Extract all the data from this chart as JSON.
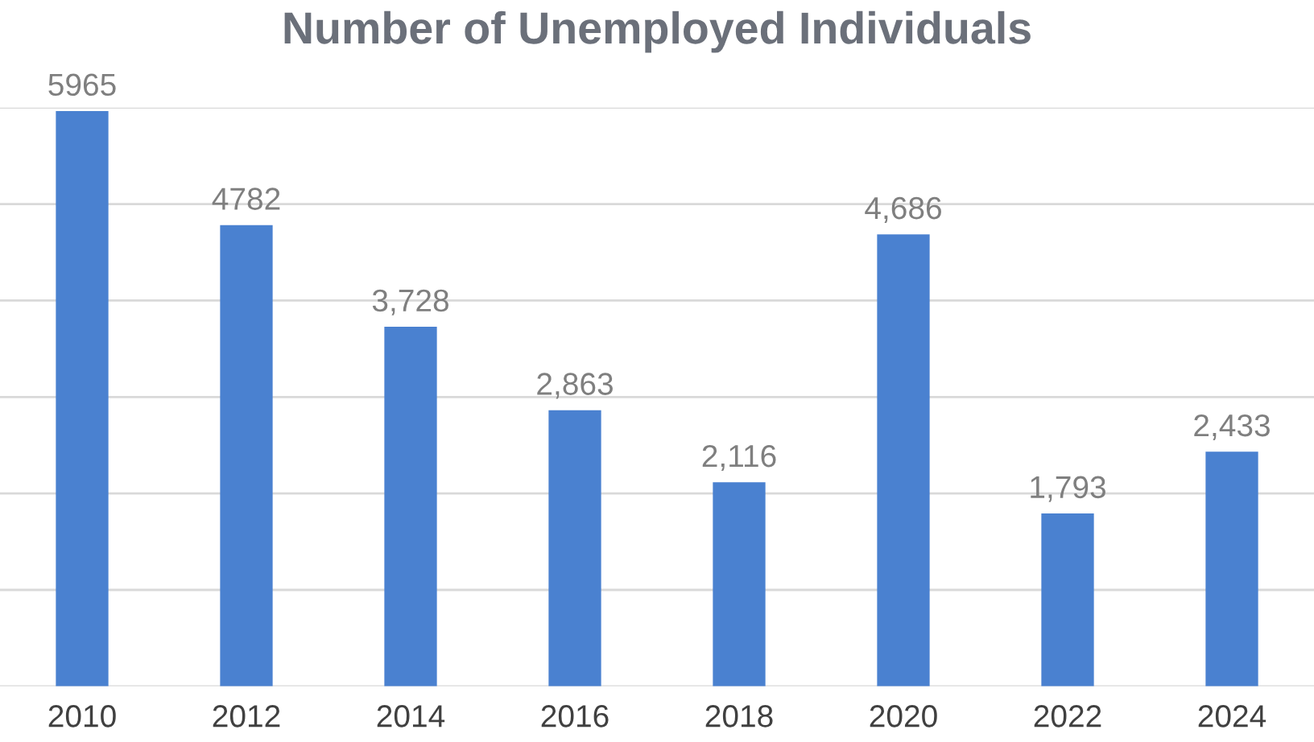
{
  "chart_data": {
    "type": "bar",
    "title": "Number of Unemployed Individuals",
    "categories": [
      "2010",
      "2012",
      "2014",
      "2016",
      "2018",
      "2020",
      "2022",
      "2024"
    ],
    "values": [
      5965,
      4782,
      3728,
      2863,
      2116,
      4686,
      1793,
      2433
    ],
    "value_labels": [
      "5965",
      "4782",
      "3,728",
      "2,863",
      "2,116",
      "4,686",
      "1,793",
      "2,433"
    ],
    "color": "#4a81d0",
    "ylim": [
      0,
      6000
    ],
    "yticks": [
      {
        "value": 0,
        "label": null
      },
      {
        "value": 1000,
        "label": null
      },
      {
        "value": 2000,
        "label": null
      },
      {
        "value": 3000,
        "label": null
      },
      {
        "value": 4000,
        "label": null
      },
      {
        "value": 5000,
        "label": null
      },
      {
        "value": 6000,
        "label": null
      }
    ],
    "grid": "y",
    "tick_labels": "x"
  }
}
